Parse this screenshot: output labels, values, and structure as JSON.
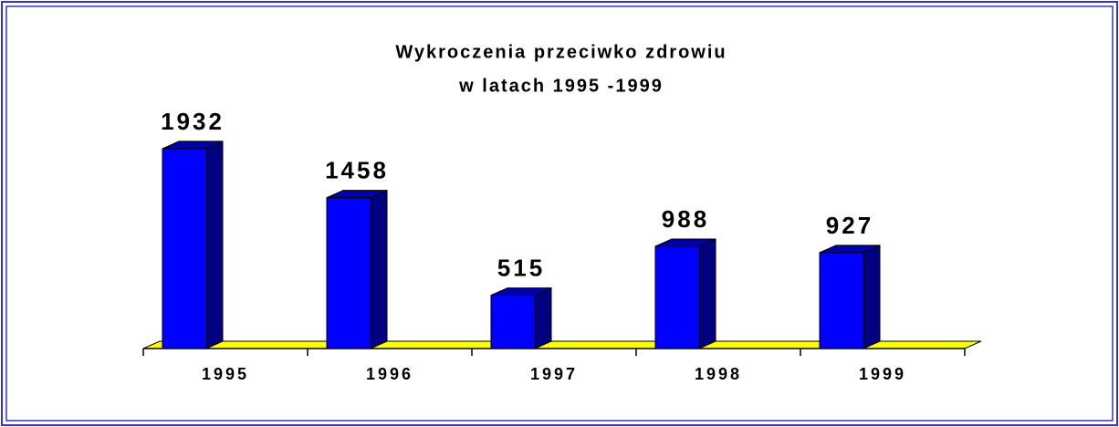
{
  "chart_data": {
    "type": "bar",
    "title": "Wykroczenia przeciwko zdrowiu",
    "subtitle": "w latach 1995 -1999",
    "categories": [
      "1995",
      "1996",
      "1997",
      "1998",
      "1999"
    ],
    "values": [
      1932,
      1458,
      515,
      988,
      927
    ],
    "color": "#0000ff"
  }
}
